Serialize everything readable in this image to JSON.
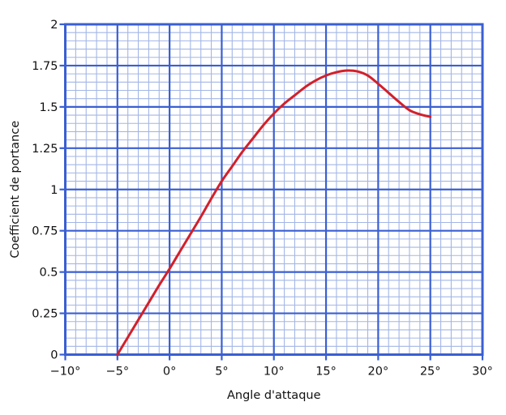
{
  "figure": {
    "background": "#ffffff"
  },
  "chart_data": {
    "type": "line",
    "title": "",
    "xlabel": "Angle d'attaque",
    "ylabel": "Coefficient de portance",
    "xlim": [
      -10,
      30
    ],
    "ylim": [
      0,
      2
    ],
    "grid": "on",
    "legend": "none",
    "x_major_step": 5,
    "x_minor_step": 1,
    "y_major_step": 0.25,
    "y_minor_step": 0.05,
    "x_tick_values": [
      -10,
      -5,
      0,
      5,
      10,
      15,
      20,
      25,
      30
    ],
    "x_tick_labels": [
      "−10°",
      "−5°",
      "0°",
      "5°",
      "10°",
      "15°",
      "20°",
      "25°",
      "30°"
    ],
    "y_tick_values": [
      0,
      0.25,
      0.5,
      0.75,
      1,
      1.25,
      1.5,
      1.75,
      2
    ],
    "y_tick_labels": [
      "0",
      "0.25",
      "0.5",
      "0.75",
      "1",
      "1.25",
      "1.5",
      "1.75",
      "2"
    ],
    "series": [
      {
        "name": "Coefficient de portance",
        "color": "#d2202a",
        "x": [
          -5,
          -4,
          -3,
          -2,
          -1,
          0,
          1,
          2,
          3,
          4,
          5,
          6,
          7,
          8,
          9,
          10,
          11,
          12,
          13,
          14,
          15,
          16,
          17,
          18,
          19,
          20,
          21,
          22,
          23,
          24,
          25
        ],
        "y": [
          0,
          0.105,
          0.21,
          0.315,
          0.42,
          0.52,
          0.625,
          0.73,
          0.835,
          0.945,
          1.05,
          1.14,
          1.23,
          1.31,
          1.39,
          1.46,
          1.52,
          1.57,
          1.62,
          1.66,
          1.69,
          1.71,
          1.72,
          1.715,
          1.69,
          1.64,
          1.585,
          1.53,
          1.48,
          1.455,
          1.44
        ]
      }
    ],
    "annotations": {
      "curve_start": "(−5°, 0)",
      "curve_peak": "(17°, 1.72)",
      "curve_end": "(25°, 1.44)"
    },
    "colors": {
      "major_grid": "#3a5fd2",
      "minor_grid": "#a3b6e6",
      "border": "#3a5fd2",
      "curve": "#d2202a",
      "text": "#111111",
      "background": "#ffffff"
    }
  }
}
